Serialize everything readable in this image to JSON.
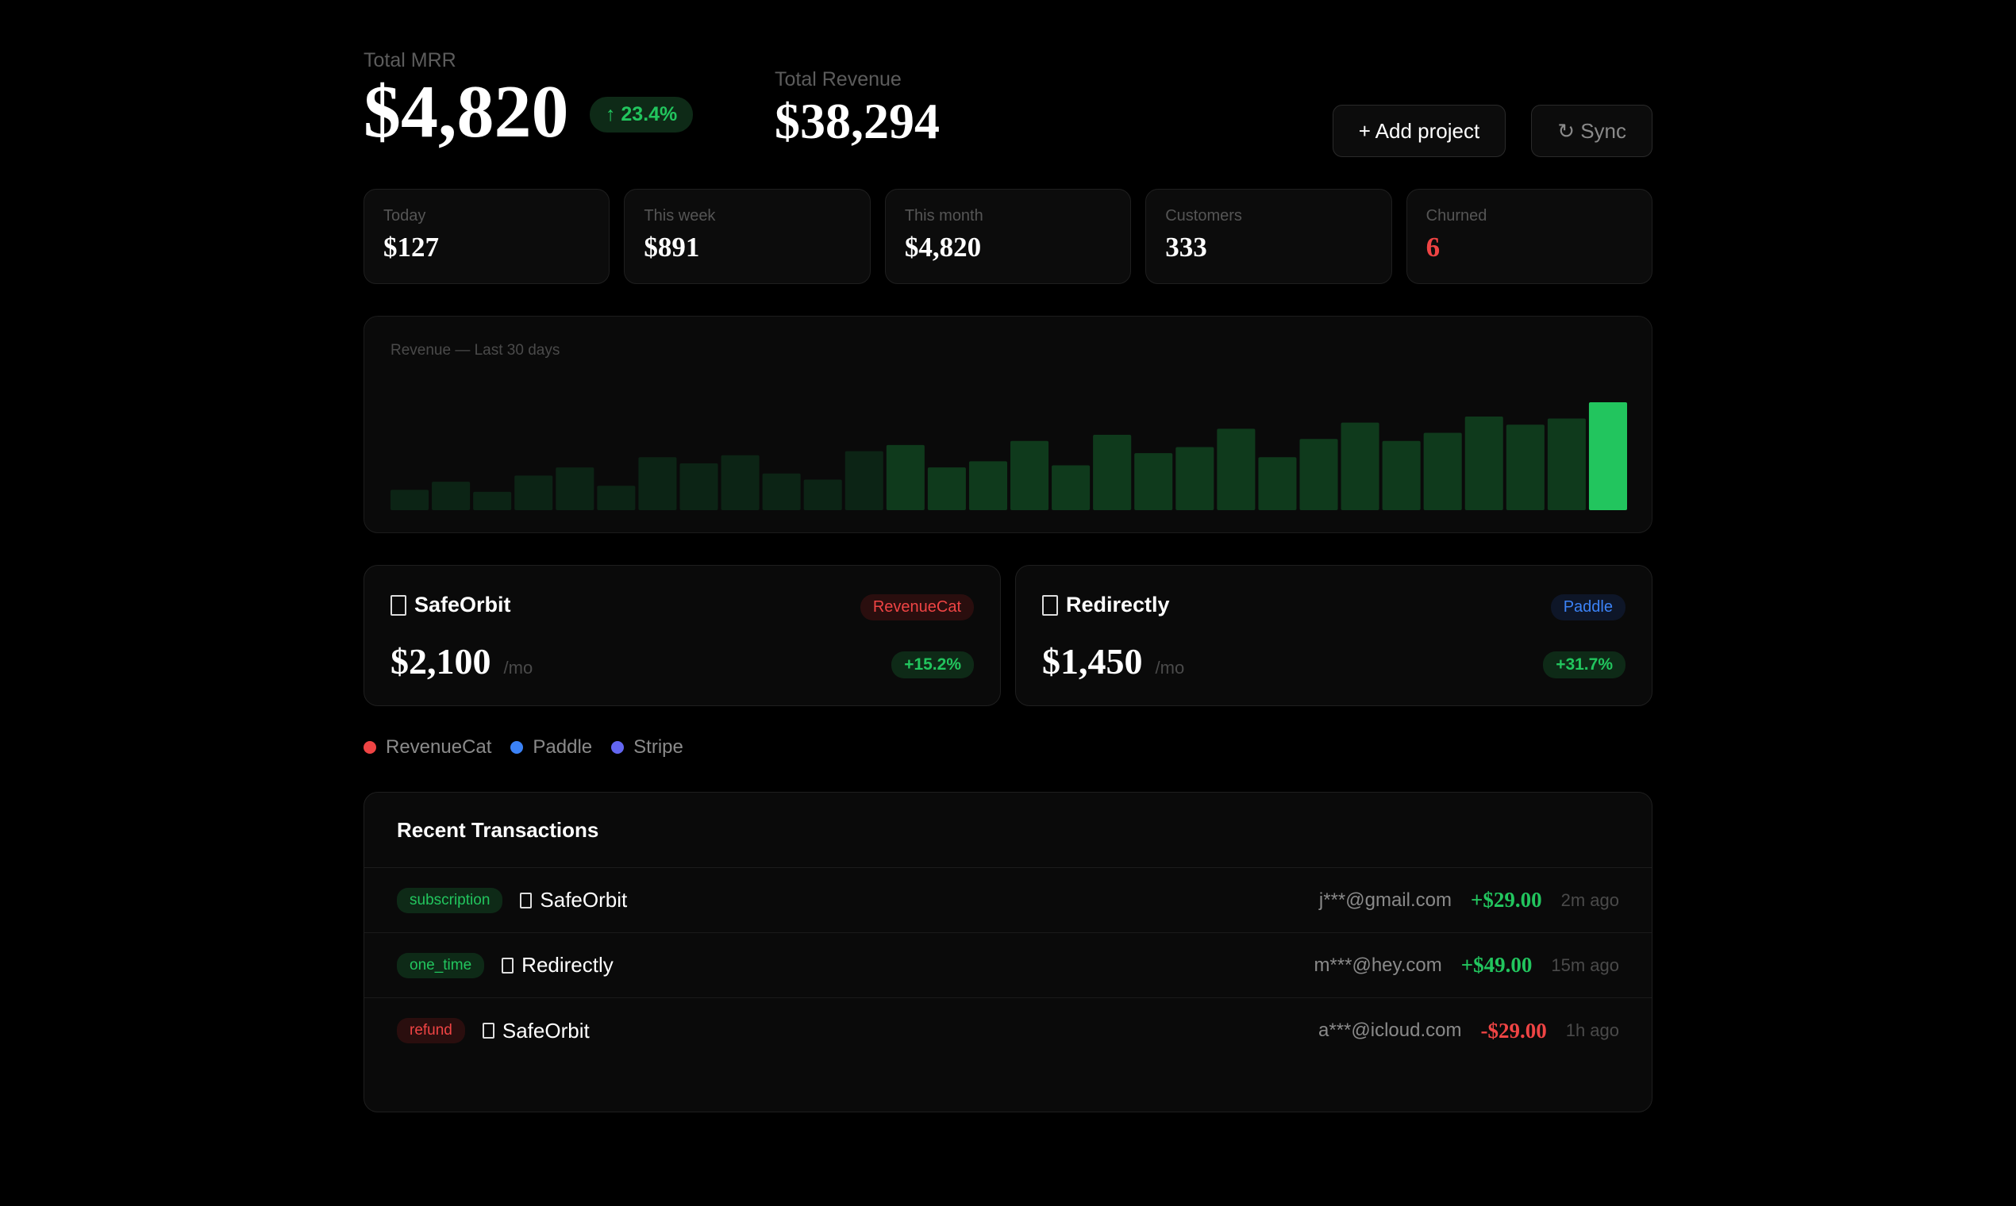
{
  "header": {
    "mrr_label": "Total MRR",
    "mrr_value": "$4,820",
    "mrr_growth": "↑ 23.4%",
    "revenue_label": "Total Revenue",
    "revenue_value": "$38,294",
    "add_project_label": "+ Add project",
    "sync_label": "↻ Sync"
  },
  "stats": [
    {
      "label": "Today",
      "value": "$127"
    },
    {
      "label": "This week",
      "value": "$891"
    },
    {
      "label": "This month",
      "value": "$4,820"
    },
    {
      "label": "Customers",
      "value": "333"
    },
    {
      "label": "Churned",
      "value": "6"
    }
  ],
  "chart": {
    "title": "Revenue — Last 30 days"
  },
  "chart_data": {
    "type": "bar",
    "values": [
      10,
      14,
      9,
      17,
      21,
      12,
      26,
      23,
      27,
      18,
      15,
      29,
      32,
      21,
      24,
      34,
      22,
      37,
      28,
      31,
      40,
      26,
      35,
      43,
      34,
      38,
      46,
      42,
      45,
      53
    ],
    "highlight_last": true,
    "colors": {
      "bar": "#0f3a1c",
      "bar_faint": "#0c2415",
      "highlight": "#22c55e"
    }
  },
  "projects": [
    {
      "name": "SafeOrbit",
      "provider": "RevenueCat",
      "amount": "$2,100",
      "unit": "/mo",
      "growth": "+15.2%"
    },
    {
      "name": "Redirectly",
      "provider": "Paddle",
      "amount": "$1,450",
      "unit": "/mo",
      "growth": "+31.7%"
    }
  ],
  "legend": [
    {
      "label": "RevenueCat",
      "color": "#ef4444"
    },
    {
      "label": "Paddle",
      "color": "#3b82f6"
    },
    {
      "label": "Stripe",
      "color": "#6366f1"
    }
  ],
  "transactions": {
    "title": "Recent Transactions",
    "rows": [
      {
        "type": "subscription",
        "project": "SafeOrbit",
        "email": "j***@gmail.com",
        "amount": "+$29.00",
        "time": "2m ago"
      },
      {
        "type": "one_time",
        "project": "Redirectly",
        "email": "m***@hey.com",
        "amount": "+$49.00",
        "time": "15m ago"
      },
      {
        "type": "refund",
        "project": "SafeOrbit",
        "email": "a***@icloud.com",
        "amount": "-$29.00",
        "time": "1h ago"
      }
    ]
  }
}
